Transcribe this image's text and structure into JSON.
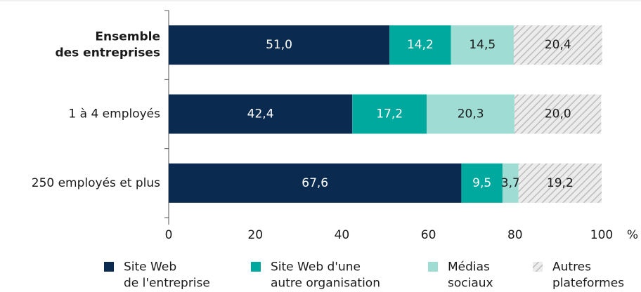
{
  "chart_data": {
    "type": "stacked_barh",
    "categories": [
      "Ensemble\ndes entreprises",
      "1 à 4 employés",
      "250 employés et plus"
    ],
    "bold_categories": [
      0
    ],
    "series": [
      {
        "name": "Site Web\nde l'entreprise",
        "color": "#0b2a4f",
        "label_color": "#ffffff",
        "values": [
          51.0,
          42.4,
          67.6
        ],
        "value_labels": [
          "51,0",
          "42,4",
          "67,6"
        ]
      },
      {
        "name": "Site Web d'une\nautre organisation",
        "color": "#00a99d",
        "label_color": "#ffffff",
        "values": [
          14.2,
          17.2,
          9.5
        ],
        "value_labels": [
          "14,2",
          "17,2",
          "9,5"
        ]
      },
      {
        "name": "Médias\nsociaux",
        "color": "#9edcd4",
        "label_color": "#1a1a1a",
        "values": [
          14.5,
          20.3,
          3.7
        ],
        "value_labels": [
          "14,5",
          "20,3",
          "3,7"
        ]
      },
      {
        "name": "Autres\nplateformes",
        "color": "#d4d4d4",
        "pattern": "hatch",
        "label_color": "#1a1a1a",
        "values": [
          20.4,
          20.0,
          19.2
        ],
        "value_labels": [
          "20,4",
          "20,0",
          "19,2"
        ]
      }
    ],
    "xlim": [
      0,
      100
    ],
    "xticks": [
      0,
      20,
      40,
      60,
      80,
      100
    ],
    "x_unit": "%"
  }
}
